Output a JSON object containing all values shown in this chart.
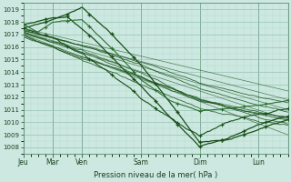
{
  "xlabel": "Pression niveau de la mer( hPa )",
  "bg_color": "#cce8e0",
  "grid_color_minor": "#b0d8cc",
  "grid_color_major": "#90c0b0",
  "line_color": "#1a5018",
  "line_color2": "#2a7030",
  "ylim": [
    1007.5,
    1019.5
  ],
  "yticks": [
    1008,
    1009,
    1010,
    1011,
    1012,
    1013,
    1014,
    1015,
    1016,
    1017,
    1018,
    1019
  ],
  "xtick_labels": [
    "Jeu",
    "Mar",
    "Ven",
    "Sam",
    "Dim",
    "Lun"
  ],
  "xtick_positions": [
    0,
    24,
    48,
    96,
    144,
    192
  ],
  "xlim": [
    0,
    216
  ],
  "total_hours": 216
}
